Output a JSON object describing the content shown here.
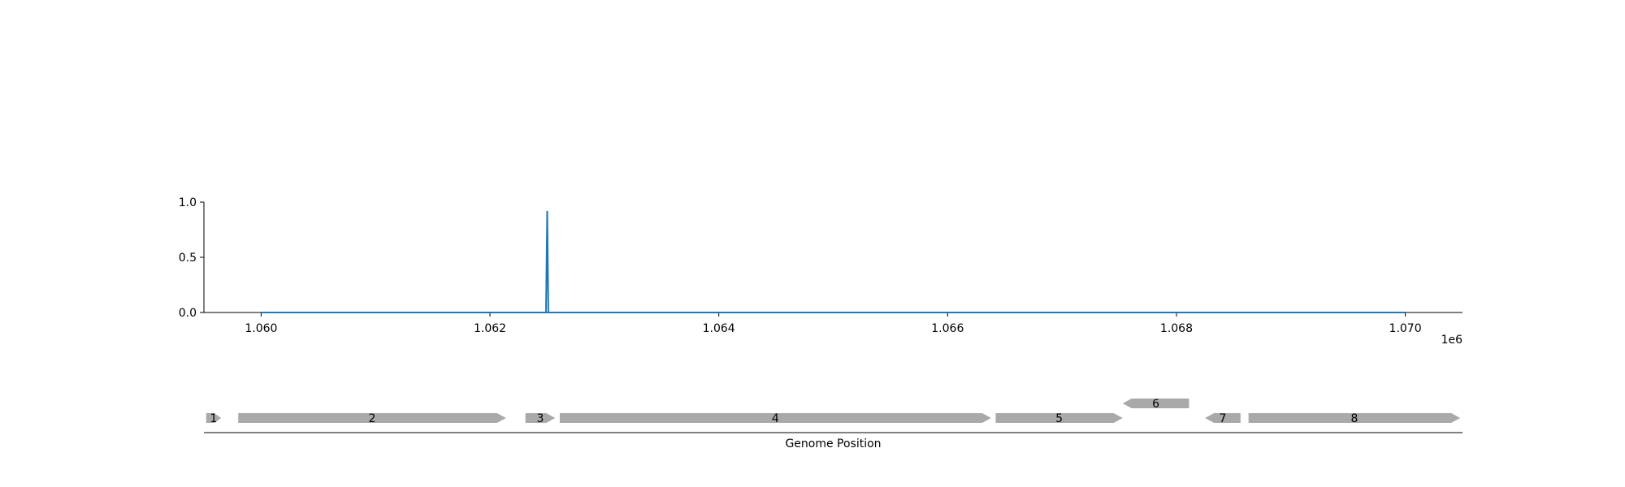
{
  "chart_data": [
    {
      "type": "line",
      "x": [
        1060000,
        1062490,
        1062500,
        1062510,
        1070000
      ],
      "y": [
        0.0,
        0.0,
        0.92,
        0.0,
        0.0
      ],
      "xlim": [
        1059500,
        1070500
      ],
      "ylim": [
        0.0,
        1.0
      ],
      "x_ticks": [
        1060000,
        1062000,
        1064000,
        1066000,
        1068000,
        1070000
      ],
      "x_tick_labels": [
        "1.060",
        "1.062",
        "1.064",
        "1.066",
        "1.068",
        "1.070"
      ],
      "x_offset_label": "1e6",
      "y_ticks": [
        0.0,
        0.5,
        1.0
      ],
      "y_tick_labels": [
        "0.0",
        "0.5",
        "1.0"
      ],
      "line_color": "#1f77b4",
      "grid": false
    },
    {
      "type": "gene-map",
      "xlabel": "Genome Position",
      "gene_color": "#a9a9a9",
      "genes": [
        {
          "label": "1",
          "start": 1059520,
          "end": 1059650,
          "strand": "+",
          "row": 0
        },
        {
          "label": "2",
          "start": 1059800,
          "end": 1062140,
          "strand": "+",
          "row": 0
        },
        {
          "label": "3",
          "start": 1062310,
          "end": 1062570,
          "strand": "+",
          "row": 0
        },
        {
          "label": "4",
          "start": 1062610,
          "end": 1066380,
          "strand": "+",
          "row": 0
        },
        {
          "label": "5",
          "start": 1066420,
          "end": 1067530,
          "strand": "+",
          "row": 0
        },
        {
          "label": "6",
          "start": 1067530,
          "end": 1068110,
          "strand": "-",
          "row": 1
        },
        {
          "label": "7",
          "start": 1068250,
          "end": 1068560,
          "strand": "-",
          "row": 0
        },
        {
          "label": "8",
          "start": 1068630,
          "end": 1070480,
          "strand": "+",
          "row": 0
        }
      ]
    }
  ]
}
